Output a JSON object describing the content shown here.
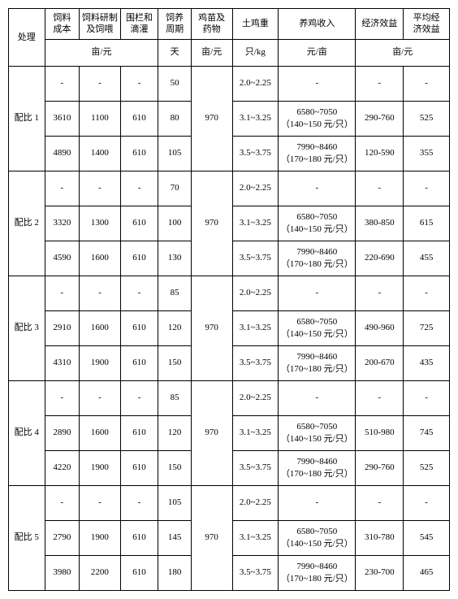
{
  "header": {
    "c0": "处理",
    "c1": "饲料\n成本",
    "c2": "饲料研制\n及饲喂",
    "c3": "围栏和\n滴灌",
    "c4": "饲养\n周期",
    "c5": "鸡苗及\n药物",
    "c6": "土鸡重",
    "c7": "养鸡收入",
    "c8": "经济效益",
    "c9": "平均经\n济效益"
  },
  "units": {
    "u1": "亩/元",
    "u4": "天",
    "u5": "亩/元",
    "u6": "只/kg",
    "u7": "元/亩",
    "u8": "亩/元"
  },
  "groups": [
    {
      "label": "配比 1",
      "chick": "970",
      "rows": [
        {
          "feed": "-",
          "prep": "-",
          "fence": "-",
          "days": "50",
          "wt": "2.0~2.25",
          "income": "-",
          "profit": "-",
          "avg": "-"
        },
        {
          "feed": "3610",
          "prep": "1100",
          "fence": "610",
          "days": "80",
          "wt": "3.1~3.25",
          "income": "6580~7050\n（140~150 元/只）",
          "profit": "290-760",
          "avg": "525"
        },
        {
          "feed": "4890",
          "prep": "1400",
          "fence": "610",
          "days": "105",
          "wt": "3.5~3.75",
          "income": "7990~8460\n（170~180 元/只）",
          "profit": "120-590",
          "avg": "355"
        }
      ]
    },
    {
      "label": "配比 2",
      "chick": "970",
      "rows": [
        {
          "feed": "-",
          "prep": "-",
          "fence": "-",
          "days": "70",
          "wt": "2.0~2.25",
          "income": "-",
          "profit": "-",
          "avg": "-"
        },
        {
          "feed": "3320",
          "prep": "1300",
          "fence": "610",
          "days": "100",
          "wt": "3.1~3.25",
          "income": "6580~7050\n（140~150 元/只）",
          "profit": "380-850",
          "avg": "615"
        },
        {
          "feed": "4590",
          "prep": "1600",
          "fence": "610",
          "days": "130",
          "wt": "3.5~3.75",
          "income": "7990~8460\n（170~180 元/只）",
          "profit": "220-690",
          "avg": "455"
        }
      ]
    },
    {
      "label": "配比 3",
      "chick": "970",
      "rows": [
        {
          "feed": "-",
          "prep": "-",
          "fence": "-",
          "days": "85",
          "wt": "2.0~2.25",
          "income": "-",
          "profit": "-",
          "avg": "-"
        },
        {
          "feed": "2910",
          "prep": "1600",
          "fence": "610",
          "days": "120",
          "wt": "3.1~3.25",
          "income": "6580~7050\n（140~150 元/只）",
          "profit": "490-960",
          "avg": "725"
        },
        {
          "feed": "4310",
          "prep": "1900",
          "fence": "610",
          "days": "150",
          "wt": "3.5~3.75",
          "income": "7990~8460\n（170~180 元/只）",
          "profit": "200-670",
          "avg": "435"
        }
      ]
    },
    {
      "label": "配比 4",
      "chick": "970",
      "rows": [
        {
          "feed": "-",
          "prep": "-",
          "fence": "-",
          "days": "85",
          "wt": "2.0~2.25",
          "income": "-",
          "profit": "-",
          "avg": "-"
        },
        {
          "feed": "2890",
          "prep": "1600",
          "fence": "610",
          "days": "120",
          "wt": "3.1~3.25",
          "income": "6580~7050\n（140~150 元/只）",
          "profit": "510-980",
          "avg": "745"
        },
        {
          "feed": "4220",
          "prep": "1900",
          "fence": "610",
          "days": "150",
          "wt": "3.5~3.75",
          "income": "7990~8460\n（170~180 元/只）",
          "profit": "290-760",
          "avg": "525"
        }
      ]
    },
    {
      "label": "配比 5",
      "chick": "970",
      "rows": [
        {
          "feed": "-",
          "prep": "-",
          "fence": "-",
          "days": "105",
          "wt": "2.0~2.25",
          "income": "-",
          "profit": "-",
          "avg": "-"
        },
        {
          "feed": "2790",
          "prep": "1900",
          "fence": "610",
          "days": "145",
          "wt": "3.1~3.25",
          "income": "6580~7050\n（140~150 元/只）",
          "profit": "310-780",
          "avg": "545"
        },
        {
          "feed": "3980",
          "prep": "2200",
          "fence": "610",
          "days": "180",
          "wt": "3.5~3.75",
          "income": "7990~8460\n（170~180 元/只）",
          "profit": "230-700",
          "avg": "465"
        }
      ]
    }
  ]
}
